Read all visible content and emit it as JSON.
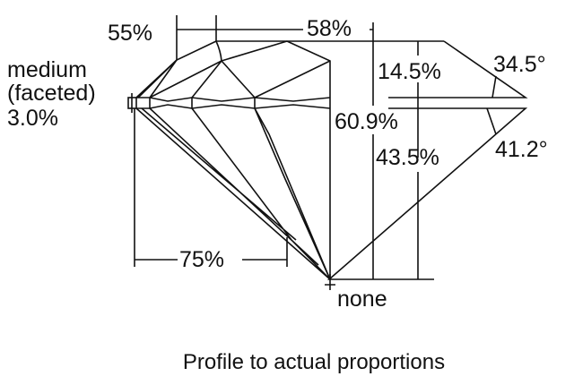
{
  "labels": {
    "table_width": "55%",
    "table_span": "58%",
    "girdle_line1": "medium",
    "girdle_line2": "(faceted)",
    "girdle_thickness": "3.0%",
    "crown_height": "14.5%",
    "total_depth": "60.9%",
    "pavilion_depth": "43.5%",
    "crown_angle": "34.5°",
    "pavilion_angle": "41.2°",
    "lower_half": "75%",
    "culet": "none"
  },
  "caption": "Profile to actual proportions"
}
